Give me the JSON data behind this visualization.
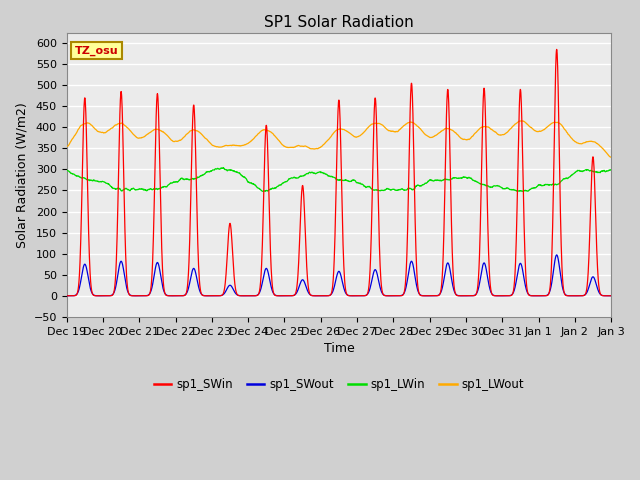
{
  "title": "SP1 Solar Radiation",
  "xlabel": "Time",
  "ylabel": "Solar Radiation (W/m2)",
  "ylim": [
    -50,
    625
  ],
  "yticks": [
    -50,
    0,
    50,
    100,
    150,
    200,
    250,
    300,
    350,
    400,
    450,
    500,
    550,
    600
  ],
  "colors": {
    "sp1_SWin": "#ff0000",
    "sp1_SWout": "#0000dd",
    "sp1_LWin": "#00dd00",
    "sp1_LWout": "#ffaa00"
  },
  "legend_labels": [
    "sp1_SWin",
    "sp1_SWout",
    "sp1_LWin",
    "sp1_LWout"
  ],
  "tz_label": "TZ_osu",
  "plot_bg_color": "#ebebeb",
  "fig_bg_color": "#d0d0d0",
  "grid_color": "#ffffff",
  "tick_label_dates": [
    "Dec 19",
    "Dec 20",
    "Dec 21",
    "Dec 22",
    "Dec 23",
    "Dec 24",
    "Dec 25",
    "Dec 26",
    "Dec 27",
    "Dec 28",
    "Dec 29",
    "Dec 30",
    "Dec 31",
    "Jan 1",
    "Jan 2",
    "Jan 3"
  ],
  "total_days": 15,
  "n_points": 2160,
  "day_peaks_SWin": [
    470,
    485,
    480,
    453,
    172,
    405,
    262,
    465,
    470,
    505,
    490,
    493,
    490,
    585,
    330
  ],
  "day_peaks_SWout": [
    75,
    82,
    79,
    65,
    25,
    65,
    38,
    58,
    62,
    82,
    78,
    78,
    77,
    97,
    45
  ]
}
